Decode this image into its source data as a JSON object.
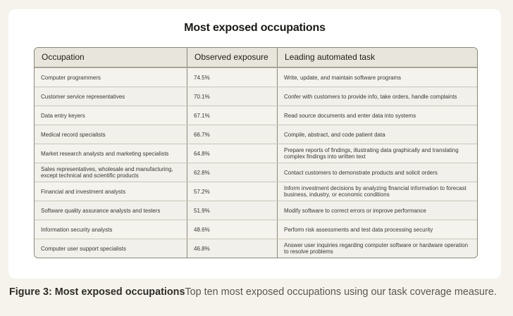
{
  "title": "Most exposed occupations",
  "table": {
    "headers": [
      "Occupation",
      "Observed exposure",
      "Leading automated task"
    ],
    "rows": [
      {
        "occupation": "Computer programmers",
        "exposure": "74.5%",
        "task": "Write, update, and maintain software programs"
      },
      {
        "occupation": "Customer service representatives",
        "exposure": "70.1%",
        "task": "Confer with customers to provide info, take orders, handle complaints"
      },
      {
        "occupation": "Data entry keyers",
        "exposure": "67.1%",
        "task": "Read source documents and enter data into systems"
      },
      {
        "occupation": "Medical record specialists",
        "exposure": "66.7%",
        "task": "Compile, abstract, and code patient data"
      },
      {
        "occupation": "Market research analysts and marketing specialists",
        "exposure": "64.8%",
        "task": "Prepare reports of findings, illustrating data graphically and translating complex findings into written text"
      },
      {
        "occupation": "Sales representatives, wholesale and manufacturing, except technical and scientific products",
        "exposure": "62.8%",
        "task": "Contact customers to demonstrate products and solicit orders"
      },
      {
        "occupation": "Financial and investment analysts",
        "exposure": "57.2%",
        "task": "Inform investment decisions by analyzing financial information to forecast business, industry, or economic conditions"
      },
      {
        "occupation": "Software quality assurance analysts and testers",
        "exposure": "51.9%",
        "task": "Modify software to correct errors or improve performance"
      },
      {
        "occupation": "Information security analysts",
        "exposure": "48.6%",
        "task": "Perform risk assessments and test data processing security"
      },
      {
        "occupation": "Computer user support specialists",
        "exposure": "46.8%",
        "task": "Answer user inquiries regarding computer software or hardware operation to resolve problems"
      }
    ]
  },
  "caption": {
    "lead": "Figure 3: Most exposed occupations",
    "text": "Top ten most exposed occupations using our task coverage measure."
  }
}
